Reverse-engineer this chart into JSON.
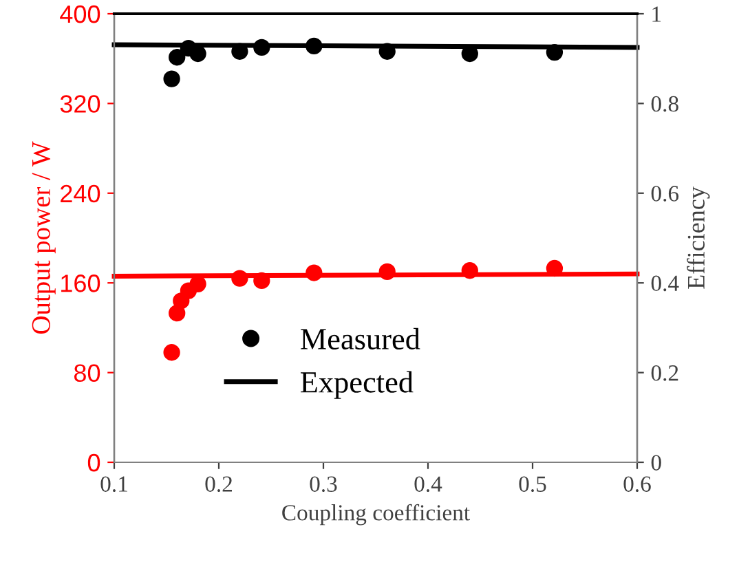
{
  "chart_data": {
    "type": "scatter",
    "xlabel": "Coupling coefficient",
    "ylabel": "Output power / W",
    "y2label": "Efficiency",
    "xlim": [
      0.1,
      0.6
    ],
    "xticks": [
      0.1,
      0.2,
      0.3,
      0.4,
      0.5,
      0.6
    ],
    "ylim": [
      0,
      400
    ],
    "yticks": [
      0,
      80,
      160,
      240,
      320,
      400
    ],
    "y2lim": [
      0,
      1
    ],
    "y2ticks": [
      0,
      0.2,
      0.4,
      0.6,
      0.8,
      1
    ],
    "grid": false,
    "legend": "bottom",
    "series": [
      {
        "marker": "circle",
        "color": "#ff0000",
        "x": [
          0.155,
          0.16,
          0.164,
          0.171,
          0.18,
          0.22,
          0.241,
          0.291,
          0.361,
          0.44,
          0.521
        ],
        "values": [
          98,
          133,
          144,
          153,
          159,
          164,
          162,
          169,
          170,
          171,
          173
        ]
      },
      {
        "type": "line",
        "color": "#ff0000",
        "line_style": "solid",
        "x": [
          0.1,
          0.6
        ],
        "values": [
          166,
          168
        ]
      },
      {
        "marker": "circle",
        "name": "Measured",
        "axis": "y2",
        "color": "#000000",
        "x": [
          0.155,
          0.16,
          0.171,
          0.18,
          0.22,
          0.241,
          0.291,
          0.361,
          0.44,
          0.521
        ],
        "values": [
          0.855,
          0.903,
          0.923,
          0.911,
          0.916,
          0.925,
          0.928,
          0.916,
          0.911,
          0.914
        ]
      },
      {
        "type": "line",
        "name": "Expected",
        "axis": "y2",
        "color": "#000000",
        "line_style": "solid",
        "x": [
          0.1,
          0.6
        ],
        "values": [
          0.931,
          0.925
        ]
      }
    ]
  }
}
